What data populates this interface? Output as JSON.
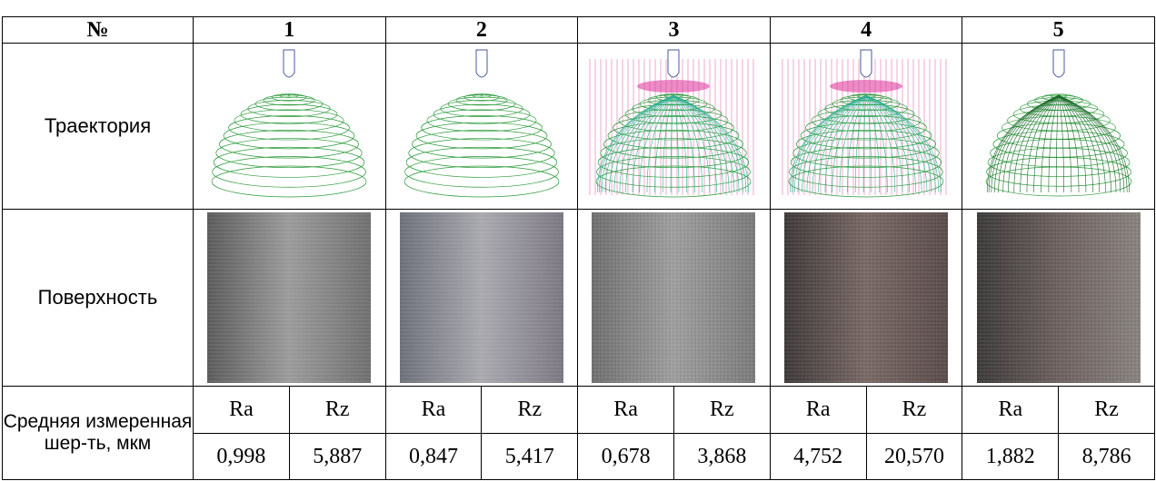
{
  "table": {
    "header": [
      "№",
      "1",
      "2",
      "3",
      "4",
      "5"
    ],
    "trajectory_label": "Траектория",
    "surface_label": "Поверхность",
    "roughness_label": "Средняя измеренная шер-ть, мкм",
    "params": [
      [
        "Ra",
        "Rz"
      ],
      [
        "Ra",
        "Rz"
      ],
      [
        "Ra",
        "Rz"
      ],
      [
        "Ra",
        "Rz"
      ],
      [
        "Ra",
        "Rz"
      ]
    ],
    "values": [
      [
        "0,998",
        "5,887"
      ],
      [
        "0,847",
        "5,417"
      ],
      [
        "0,678",
        "3,868"
      ],
      [
        "4,752",
        "20,570"
      ],
      [
        "1,882",
        "8,786"
      ]
    ]
  }
}
